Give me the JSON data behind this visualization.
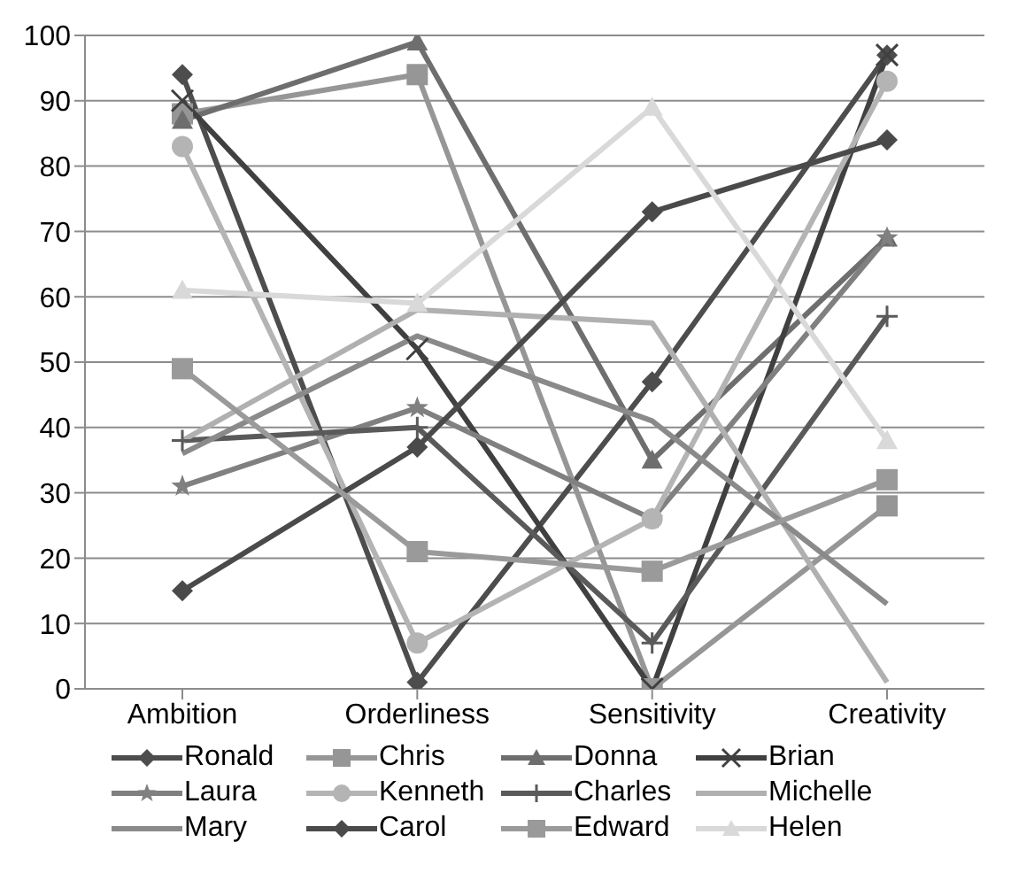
{
  "chart_data": {
    "type": "line",
    "categories": [
      "Ambition",
      "Orderliness",
      "Sensitivity",
      "Creativity"
    ],
    "ylim": [
      0,
      100
    ],
    "yticks": [
      0,
      10,
      20,
      30,
      40,
      50,
      60,
      70,
      80,
      90,
      100
    ],
    "grid": "y",
    "legend": "bottom",
    "series": [
      {
        "name": "Ronald",
        "color": "#4d4d4d",
        "marker": "diamond",
        "values": [
          94,
          1,
          47,
          97
        ]
      },
      {
        "name": "Chris",
        "color": "#969696",
        "marker": "square",
        "values": [
          88,
          94,
          0,
          28
        ]
      },
      {
        "name": "Donna",
        "color": "#6e6e6e",
        "marker": "triangle",
        "values": [
          87,
          99,
          35,
          69
        ]
      },
      {
        "name": "Brian",
        "color": "#404040",
        "marker": "cross",
        "values": [
          90,
          52,
          0,
          97
        ]
      },
      {
        "name": "Laura",
        "color": "#808080",
        "marker": "star",
        "values": [
          31,
          43,
          26,
          69
        ]
      },
      {
        "name": "Kenneth",
        "color": "#b4b4b4",
        "marker": "circle",
        "values": [
          83,
          7,
          26,
          93
        ]
      },
      {
        "name": "Charles",
        "color": "#5a5a5a",
        "marker": "plus",
        "values": [
          38,
          40,
          7,
          57
        ]
      },
      {
        "name": "Michelle",
        "color": "#b0b0b0",
        "marker": "none",
        "values": [
          38,
          58,
          56,
          1
        ]
      },
      {
        "name": "Mary",
        "color": "#8a8a8a",
        "marker": "none",
        "values": [
          36,
          54,
          41,
          13
        ]
      },
      {
        "name": "Carol",
        "color": "#4a4a4a",
        "marker": "diamond",
        "values": [
          15,
          37,
          73,
          84
        ]
      },
      {
        "name": "Edward",
        "color": "#9a9a9a",
        "marker": "square",
        "values": [
          49,
          21,
          18,
          32
        ]
      },
      {
        "name": "Helen",
        "color": "#d9d9d9",
        "marker": "triangle",
        "values": [
          61,
          59,
          89,
          38
        ]
      }
    ]
  }
}
